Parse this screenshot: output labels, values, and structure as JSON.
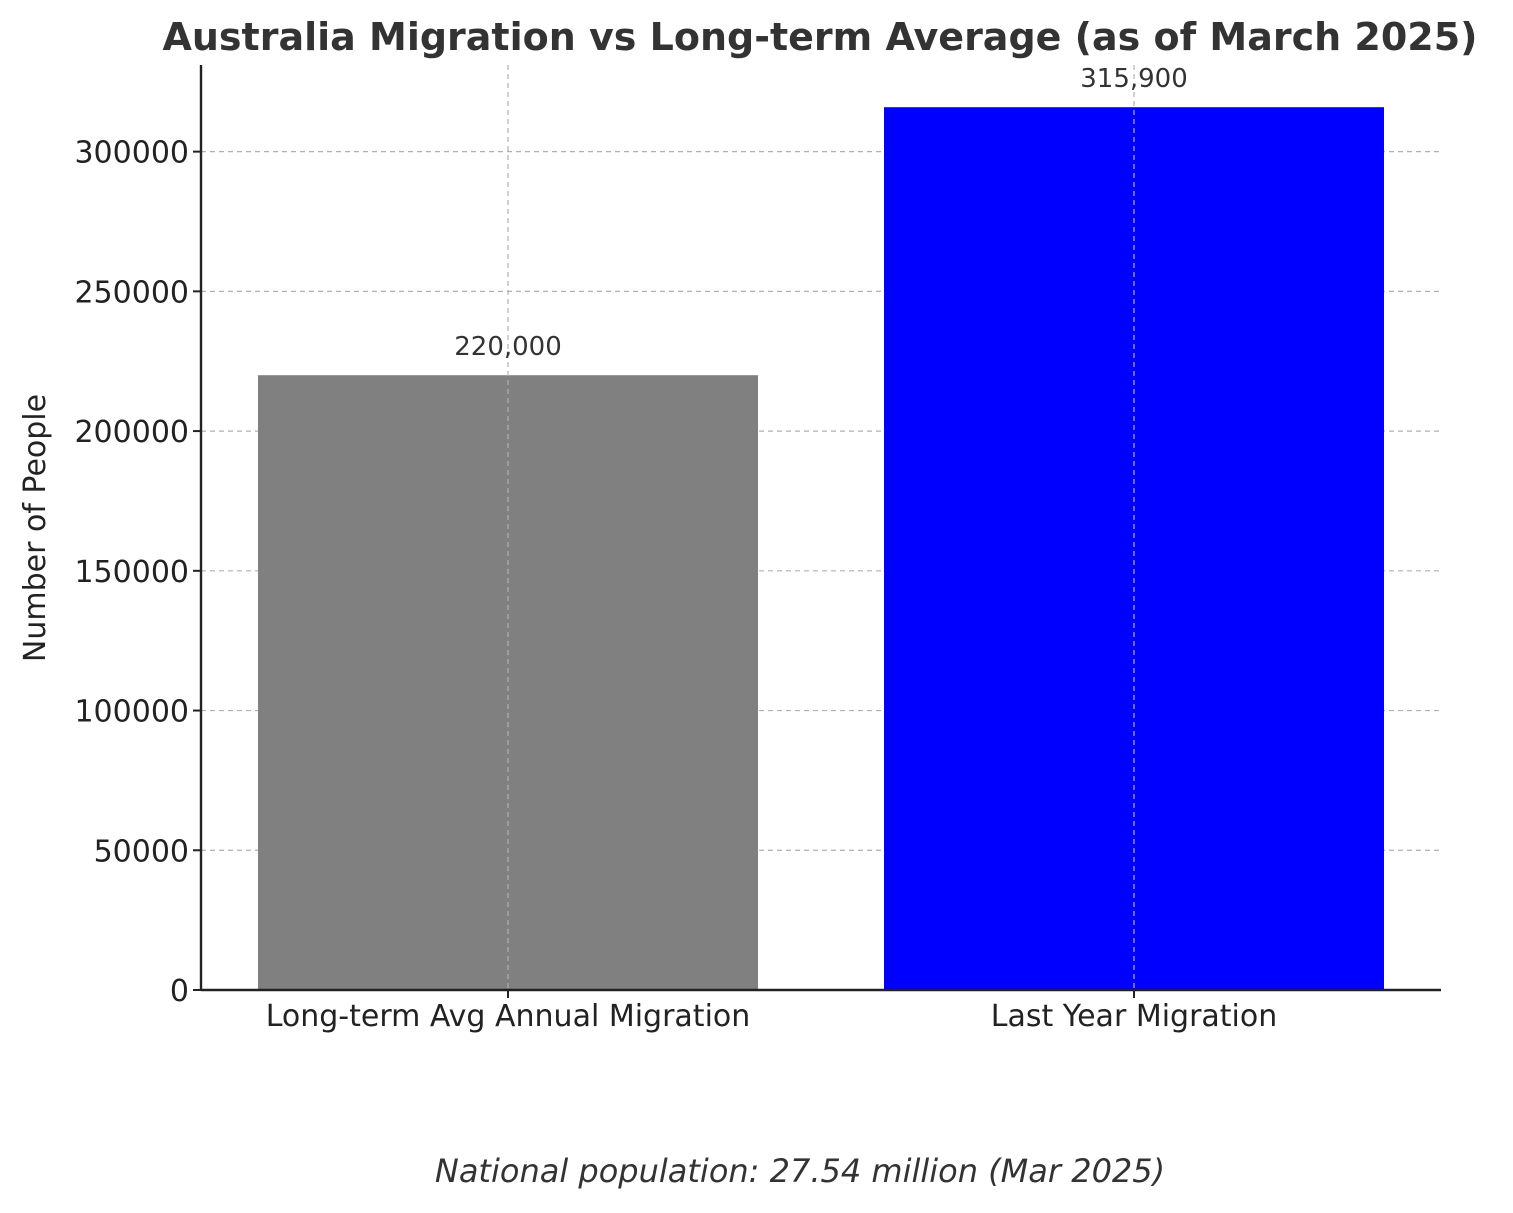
{
  "chart_data": {
    "type": "bar",
    "title": "Australia Migration vs Long-term Average (as of March 2025)",
    "xlabel": "",
    "ylabel": "Number of People",
    "categories": [
      "Long-term Avg Annual Migration",
      "Last Year Migration"
    ],
    "values": [
      220000,
      315900
    ],
    "data_labels": [
      "220,000",
      "315,900"
    ],
    "colors": [
      "#808080",
      "#0000ff"
    ],
    "ylim": [
      0,
      331000
    ],
    "yticks": [
      0,
      50000,
      100000,
      150000,
      200000,
      250000,
      300000
    ],
    "ytick_labels": [
      "0",
      "50000",
      "100000",
      "150000",
      "200000",
      "250000",
      "300000"
    ],
    "grid": true,
    "annotation": "National population: 27.54 million (Mar 2025)"
  }
}
